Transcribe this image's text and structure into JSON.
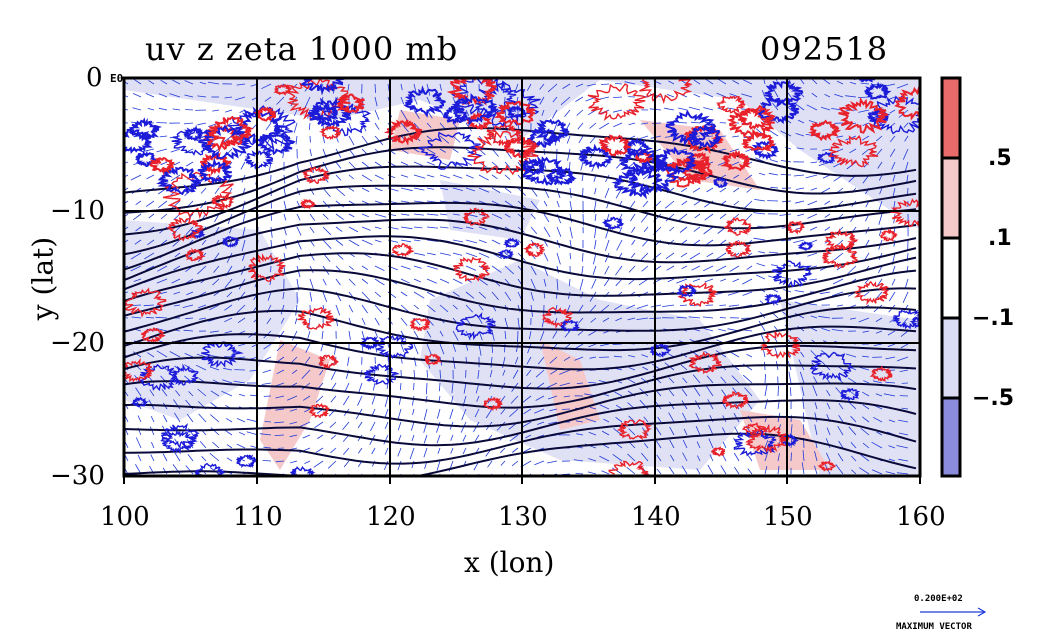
{
  "header": {
    "title": "uv z zeta 1000 mb",
    "date_code": "092518"
  },
  "axes": {
    "x_label": "x (lon)",
    "y_label": "y (lat)",
    "x_ticks": [
      "100",
      "110",
      "120",
      "130",
      "140",
      "150",
      "160"
    ],
    "y_ticks": [
      "0",
      "−10",
      "−20",
      "−30"
    ],
    "corner_mark": "E0"
  },
  "colorbar": {
    "labels": [
      ".5",
      ".1",
      "−.1",
      "−.5"
    ],
    "colors": [
      "#e86a6a",
      "#f5c9c9",
      "#ffffff",
      "#dcdcf5",
      "#8c8cdc"
    ]
  },
  "legend": {
    "max_vector_value": "0.200E+02",
    "max_vector_label": "MAXIMUM VECTOR"
  },
  "colors": {
    "positive_contour": "#e8212a",
    "negative_contour": "#1b1bd8",
    "height_contour": "#0a0a3a",
    "vector": "#1f3ad8",
    "shade_light_blue": "#dcdcf5",
    "shade_pink": "#f5c9c9"
  },
  "chart_data": {
    "type": "map",
    "xlim": [
      100,
      160
    ],
    "ylim": [
      -30,
      0
    ],
    "grid": true,
    "fields": [
      "uv wind vectors",
      "z geopotential height contours",
      "zeta vorticity shading"
    ]
  }
}
